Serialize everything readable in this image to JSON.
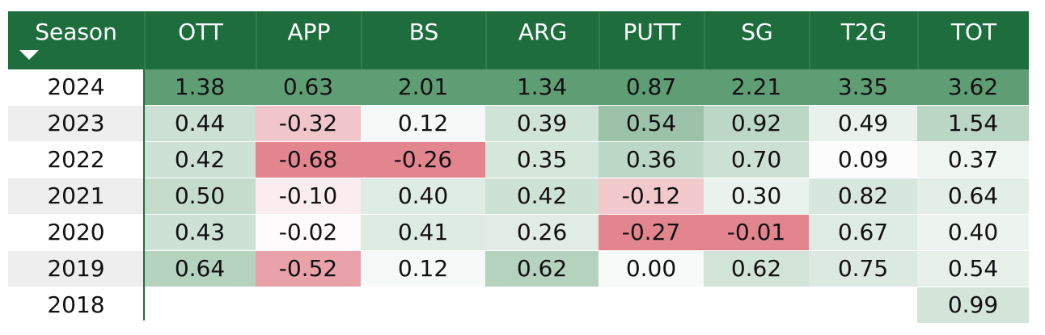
{
  "header": {
    "season_label": "Season",
    "columns": [
      "OTT",
      "APP",
      "BS",
      "ARG",
      "PUTT",
      "SG",
      "T2G",
      "TOT"
    ]
  },
  "rows": [
    {
      "season": "2024",
      "values": [
        "1.38",
        "0.63",
        "2.01",
        "1.34",
        "0.87",
        "2.21",
        "3.35",
        "3.62"
      ]
    },
    {
      "season": "2023",
      "values": [
        "0.44",
        "-0.32",
        "0.12",
        "0.39",
        "0.54",
        "0.92",
        "0.49",
        "1.54"
      ]
    },
    {
      "season": "2022",
      "values": [
        "0.42",
        "-0.68",
        "-0.26",
        "0.35",
        "0.36",
        "0.70",
        "0.09",
        "0.37"
      ]
    },
    {
      "season": "2021",
      "values": [
        "0.50",
        "-0.10",
        "0.40",
        "0.42",
        "-0.12",
        "0.30",
        "0.82",
        "0.64"
      ]
    },
    {
      "season": "2020",
      "values": [
        "0.43",
        "-0.02",
        "0.41",
        "0.26",
        "-0.27",
        "-0.01",
        "0.67",
        "0.40"
      ]
    },
    {
      "season": "2019",
      "values": [
        "0.64",
        "-0.52",
        "0.12",
        "0.62",
        "0.00",
        "0.62",
        "0.75",
        "0.54"
      ]
    },
    {
      "season": "2018",
      "values": [
        "",
        "",
        "",
        "",
        "",
        "",
        "",
        "0.99"
      ]
    }
  ],
  "colors": {
    "header_bg": "#1e6e3d",
    "header_text": "#ffffff",
    "positive_max": "#5f9e75",
    "negative_max": "#e2858f",
    "neutral": "#ffffff",
    "year_band": "#eeeeee"
  }
}
